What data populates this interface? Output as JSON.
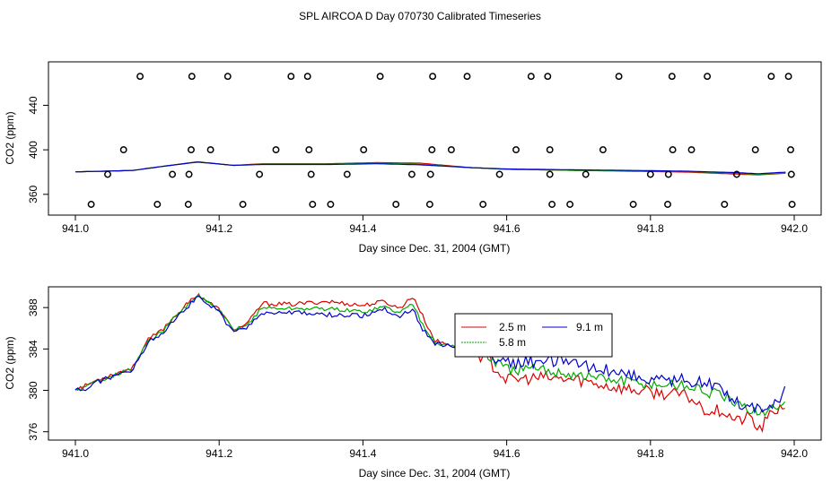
{
  "title": "SPL AIRCOA D  Day 070730  Calibrated Timeseries",
  "colors": {
    "red": "#dd0000",
    "green": "#00aa00",
    "blue": "#0000cc",
    "black": "#000000"
  },
  "chart_data": [
    {
      "type": "scatter+line",
      "id": "top",
      "xlabel": "Day since Dec. 31, 2004 (GMT)",
      "ylabel": "CO2 (ppm)",
      "xlim": [
        941.0,
        942.0
      ],
      "ylim": [
        351,
        475
      ],
      "xticks": [
        941.0,
        941.2,
        941.4,
        941.6,
        941.8,
        942.0
      ],
      "xtick_labels": [
        "941.0",
        "941.2",
        "941.4",
        "941.6",
        "941.8",
        "942.0"
      ],
      "yticks": [
        360,
        400,
        440
      ],
      "ytick_labels": [
        "360",
        "400",
        "440"
      ],
      "circles": [
        [
          941.09,
          466
        ],
        [
          941.162,
          466
        ],
        [
          941.212,
          466
        ],
        [
          941.3,
          466
        ],
        [
          941.323,
          466
        ],
        [
          941.424,
          466
        ],
        [
          941.497,
          466
        ],
        [
          941.545,
          466
        ],
        [
          941.634,
          466
        ],
        [
          941.657,
          466
        ],
        [
          941.756,
          466
        ],
        [
          941.83,
          466
        ],
        [
          941.879,
          466
        ],
        [
          941.968,
          466
        ],
        [
          941.992,
          466
        ],
        [
          941.067,
          400
        ],
        [
          941.161,
          400
        ],
        [
          941.188,
          400
        ],
        [
          941.279,
          400
        ],
        [
          941.325,
          400
        ],
        [
          941.401,
          400
        ],
        [
          941.496,
          400
        ],
        [
          941.523,
          400
        ],
        [
          941.613,
          400
        ],
        [
          941.66,
          400
        ],
        [
          941.734,
          400
        ],
        [
          941.831,
          400
        ],
        [
          941.857,
          400
        ],
        [
          941.946,
          400
        ],
        [
          941.995,
          400
        ],
        [
          941.045,
          378
        ],
        [
          941.135,
          378
        ],
        [
          941.158,
          378
        ],
        [
          941.256,
          378
        ],
        [
          941.328,
          378
        ],
        [
          941.378,
          378
        ],
        [
          941.468,
          378
        ],
        [
          941.494,
          378
        ],
        [
          941.59,
          378
        ],
        [
          941.66,
          378
        ],
        [
          941.71,
          378
        ],
        [
          941.8,
          378
        ],
        [
          941.825,
          378
        ],
        [
          941.92,
          378
        ],
        [
          941.996,
          378
        ],
        [
          941.022,
          351
        ],
        [
          941.114,
          351
        ],
        [
          941.157,
          351
        ],
        [
          941.233,
          351
        ],
        [
          941.33,
          351
        ],
        [
          941.355,
          351
        ],
        [
          941.446,
          351
        ],
        [
          941.493,
          351
        ],
        [
          941.567,
          351
        ],
        [
          941.663,
          351
        ],
        [
          941.688,
          351
        ],
        [
          941.776,
          351
        ],
        [
          941.824,
          351
        ],
        [
          941.903,
          351
        ],
        [
          941.997,
          351
        ]
      ],
      "series": [
        {
          "name": "2.5 m",
          "color": "#dd0000",
          "anchors": [
            [
              941.0,
              380.2
            ],
            [
              941.04,
              380.8
            ],
            [
              941.08,
              381.5
            ],
            [
              941.12,
              385
            ],
            [
              941.17,
              389.3
            ],
            [
              941.22,
              386
            ],
            [
              941.26,
              387.5
            ],
            [
              941.35,
              387.5
            ],
            [
              941.42,
              388.5
            ],
            [
              941.48,
              388
            ],
            [
              941.55,
              384
            ],
            [
              941.6,
              382.5
            ],
            [
              941.7,
              381.5
            ],
            [
              941.8,
              380.5
            ],
            [
              941.85,
              380
            ],
            [
              941.92,
              378.2
            ],
            [
              941.95,
              377.5
            ],
            [
              941.99,
              379
            ]
          ]
        },
        {
          "name": "5.8 m",
          "color": "#00aa00",
          "anchors": [
            [
              941.0,
              380.2
            ],
            [
              941.04,
              380.8
            ],
            [
              941.08,
              381.5
            ],
            [
              941.12,
              385
            ],
            [
              941.17,
              389.2
            ],
            [
              941.22,
              386
            ],
            [
              941.26,
              387.2
            ],
            [
              941.35,
              387.2
            ],
            [
              941.42,
              388
            ],
            [
              941.48,
              387
            ],
            [
              941.55,
              384
            ],
            [
              941.6,
              382.5
            ],
            [
              941.7,
              381.5
            ],
            [
              941.8,
              381
            ],
            [
              941.85,
              380.5
            ],
            [
              941.92,
              379
            ],
            [
              941.95,
              378
            ],
            [
              941.99,
              379
            ]
          ]
        },
        {
          "name": "9.1 m",
          "color": "#0000cc",
          "anchors": [
            [
              941.0,
              380.2
            ],
            [
              941.04,
              380.8
            ],
            [
              941.08,
              381.5
            ],
            [
              941.12,
              385
            ],
            [
              941.17,
              389
            ],
            [
              941.22,
              386
            ],
            [
              941.26,
              386.8
            ],
            [
              941.35,
              386.8
            ],
            [
              941.42,
              387.5
            ],
            [
              941.48,
              386.5
            ],
            [
              941.55,
              384
            ],
            [
              941.6,
              382.8
            ],
            [
              941.7,
              382
            ],
            [
              941.8,
              381.3
            ],
            [
              941.85,
              380.8
            ],
            [
              941.92,
              379.5
            ],
            [
              941.95,
              378.5
            ],
            [
              941.99,
              380
            ]
          ]
        }
      ]
    },
    {
      "type": "line",
      "id": "bottom",
      "xlabel": "Day since Dec. 31, 2004 (GMT)",
      "ylabel": "CO2 (ppm)",
      "xlim": [
        941.0,
        942.0
      ],
      "ylim": [
        375.8,
        389.4
      ],
      "xticks": [
        941.0,
        941.2,
        941.4,
        941.6,
        941.8,
        942.0
      ],
      "xtick_labels": [
        "941.0",
        "941.2",
        "941.4",
        "941.6",
        "941.8",
        "942.0"
      ],
      "yticks": [
        376,
        380,
        384,
        388
      ],
      "ytick_labels": [
        "376",
        "380",
        "384",
        "388"
      ],
      "legend": [
        "2.5 m",
        "5.8 m",
        "9.1 m"
      ],
      "series": [
        {
          "name": "2.5 m",
          "color": "#dd0000",
          "noise": 0.6,
          "anchors": [
            [
              941.0,
              380.2
            ],
            [
              941.01,
              380.3
            ],
            [
              941.03,
              381.0
            ],
            [
              941.05,
              381.5
            ],
            [
              941.08,
              382.2
            ],
            [
              941.1,
              384.8
            ],
            [
              941.12,
              385.8
            ],
            [
              941.14,
              387.3
            ],
            [
              941.17,
              389.3
            ],
            [
              941.2,
              387.8
            ],
            [
              941.22,
              385.8
            ],
            [
              941.24,
              386.5
            ],
            [
              941.26,
              388.4
            ],
            [
              941.3,
              388.3
            ],
            [
              941.35,
              388.6
            ],
            [
              941.4,
              388.2
            ],
            [
              941.43,
              388.6
            ],
            [
              941.45,
              387.9
            ],
            [
              941.47,
              389.1
            ],
            [
              941.48,
              387.6
            ],
            [
              941.5,
              384.8
            ],
            [
              941.53,
              384.2
            ],
            [
              941.57,
              383.2
            ],
            [
              941.6,
              381.0
            ],
            [
              941.65,
              381.2
            ],
            [
              941.7,
              381.0
            ],
            [
              941.75,
              380.3
            ],
            [
              941.8,
              379.8
            ],
            [
              941.85,
              379.5
            ],
            [
              941.88,
              378.0
            ],
            [
              941.9,
              378.1
            ],
            [
              941.92,
              377.0
            ],
            [
              941.94,
              377.5
            ],
            [
              941.95,
              376.0
            ],
            [
              941.97,
              377.9
            ],
            [
              941.99,
              378.8
            ]
          ]
        },
        {
          "name": "5.8 m",
          "color": "#00aa00",
          "noise": 0.55,
          "anchors": [
            [
              941.0,
              380.1
            ],
            [
              941.01,
              380.2
            ],
            [
              941.03,
              380.9
            ],
            [
              941.05,
              381.4
            ],
            [
              941.08,
              382.1
            ],
            [
              941.1,
              384.7
            ],
            [
              941.12,
              385.6
            ],
            [
              941.14,
              387.2
            ],
            [
              941.17,
              389.2
            ],
            [
              941.2,
              387.7
            ],
            [
              941.22,
              385.8
            ],
            [
              941.24,
              386.4
            ],
            [
              941.26,
              388.0
            ],
            [
              941.3,
              387.9
            ],
            [
              941.35,
              387.9
            ],
            [
              941.4,
              387.6
            ],
            [
              941.43,
              388.1
            ],
            [
              941.45,
              387.5
            ],
            [
              941.47,
              388.4
            ],
            [
              941.48,
              386.8
            ],
            [
              941.5,
              384.6
            ],
            [
              941.53,
              384.2
            ],
            [
              941.57,
              383.5
            ],
            [
              941.6,
              382.0
            ],
            [
              941.65,
              382.0
            ],
            [
              941.7,
              381.5
            ],
            [
              941.75,
              381.0
            ],
            [
              941.8,
              380.6
            ],
            [
              941.85,
              380.5
            ],
            [
              941.88,
              379.8
            ],
            [
              941.9,
              379.5
            ],
            [
              941.92,
              378.5
            ],
            [
              941.94,
              378.2
            ],
            [
              941.96,
              377.8
            ],
            [
              941.99,
              379.0
            ]
          ]
        },
        {
          "name": "9.1 m",
          "color": "#0000cc",
          "noise": 0.65,
          "anchors": [
            [
              941.0,
              380.1
            ],
            [
              941.01,
              380.0
            ],
            [
              941.03,
              380.8
            ],
            [
              941.05,
              381.3
            ],
            [
              941.08,
              382.0
            ],
            [
              941.1,
              384.6
            ],
            [
              941.12,
              385.5
            ],
            [
              941.14,
              387.1
            ],
            [
              941.17,
              389.0
            ],
            [
              941.2,
              387.6
            ],
            [
              941.22,
              385.5
            ],
            [
              941.24,
              386.2
            ],
            [
              941.26,
              387.5
            ],
            [
              941.3,
              387.5
            ],
            [
              941.35,
              387.3
            ],
            [
              941.4,
              387.2
            ],
            [
              941.43,
              387.9
            ],
            [
              941.45,
              387.1
            ],
            [
              941.47,
              387.9
            ],
            [
              941.48,
              386.2
            ],
            [
              941.5,
              384.5
            ],
            [
              941.53,
              384.2
            ],
            [
              941.57,
              383.8
            ],
            [
              941.6,
              382.6
            ],
            [
              941.65,
              382.9
            ],
            [
              941.7,
              382.5
            ],
            [
              941.75,
              381.9
            ],
            [
              941.8,
              381.0
            ],
            [
              941.85,
              381.0
            ],
            [
              941.88,
              380.6
            ],
            [
              941.9,
              380.2
            ],
            [
              941.92,
              378.9
            ],
            [
              941.94,
              378.5
            ],
            [
              941.96,
              378.0
            ],
            [
              941.99,
              380.1
            ]
          ]
        }
      ]
    }
  ]
}
